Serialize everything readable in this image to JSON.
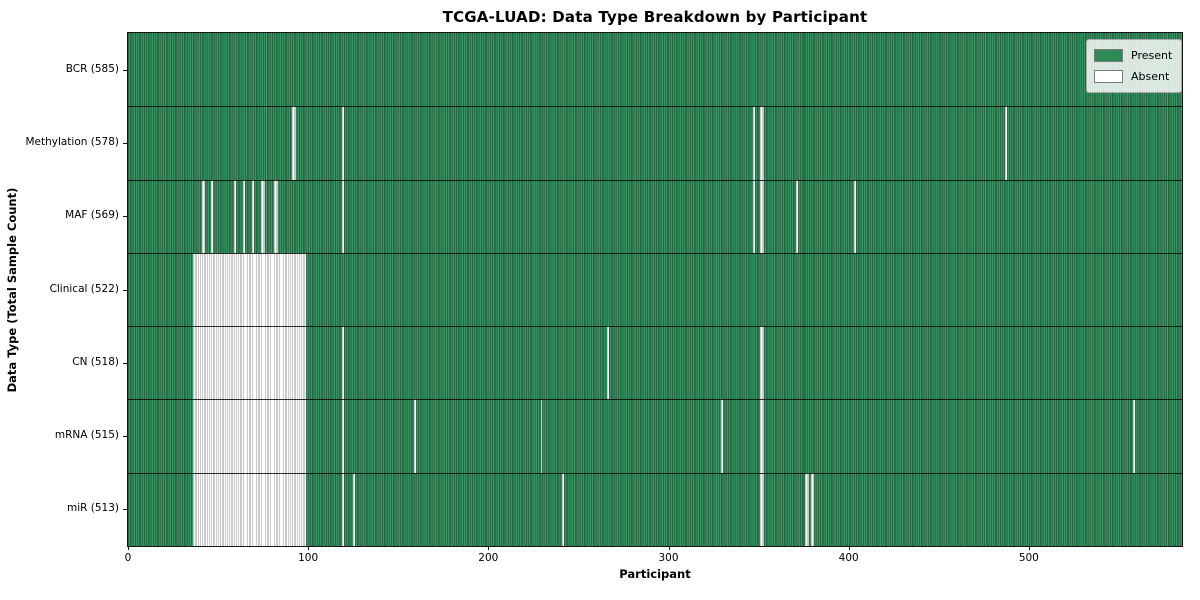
{
  "chart_data": {
    "type": "heatmap",
    "title": "TCGA-LUAD: Data Type Breakdown by Participant",
    "xlabel": "Participant",
    "ylabel": "Data Type (Total Sample Count)",
    "n_participants": 585,
    "x_ticks": [
      0,
      100,
      200,
      300,
      400,
      500
    ],
    "legend": [
      {
        "label": "Present",
        "color": "#2e8b57"
      },
      {
        "label": "Absent",
        "color": "#ffffff"
      }
    ],
    "legend_position": "upper right",
    "grid": false,
    "colors": {
      "present": "#2e8b57",
      "present_edge": "#16492d",
      "present_light": "#4c9c70",
      "absent": "#ffffff",
      "absent_edge": "#969696"
    },
    "rows": [
      {
        "label": "BCR (585)",
        "data_type": "BCR",
        "total": 585,
        "absent_ranges": []
      },
      {
        "label": "Methylation (578)",
        "data_type": "Methylation",
        "total": 578,
        "absent_ranges": [
          [
            91,
            93
          ],
          [
            119,
            120
          ],
          [
            347,
            348
          ],
          [
            351,
            353
          ],
          [
            487,
            488
          ]
        ]
      },
      {
        "label": "MAF (569)",
        "data_type": "MAF",
        "total": 569,
        "absent_ranges": [
          [
            41,
            43
          ],
          [
            46,
            47
          ],
          [
            59,
            60
          ],
          [
            64,
            65
          ],
          [
            69,
            70
          ],
          [
            74,
            76
          ],
          [
            81,
            83
          ],
          [
            119,
            120
          ],
          [
            347,
            348
          ],
          [
            351,
            353
          ],
          [
            371,
            372
          ],
          [
            403,
            404
          ]
        ]
      },
      {
        "label": "Clinical (522)",
        "data_type": "Clinical",
        "total": 522,
        "absent_ranges": [
          [
            36,
            99
          ]
        ]
      },
      {
        "label": "CN (518)",
        "data_type": "CN",
        "total": 518,
        "absent_ranges": [
          [
            36,
            99
          ],
          [
            119,
            120
          ],
          [
            266,
            267
          ],
          [
            351,
            353
          ]
        ]
      },
      {
        "label": "mRNA (515)",
        "data_type": "mRNA",
        "total": 515,
        "absent_ranges": [
          [
            36,
            99
          ],
          [
            119,
            120
          ],
          [
            159,
            160
          ],
          [
            229,
            230
          ],
          [
            329,
            330
          ],
          [
            351,
            353
          ],
          [
            558,
            559
          ]
        ]
      },
      {
        "label": "miR (513)",
        "data_type": "miR",
        "total": 513,
        "absent_ranges": [
          [
            36,
            99
          ],
          [
            119,
            120
          ],
          [
            125,
            126
          ],
          [
            241,
            242
          ],
          [
            351,
            353
          ],
          [
            376,
            378
          ],
          [
            379,
            381
          ]
        ]
      }
    ]
  }
}
